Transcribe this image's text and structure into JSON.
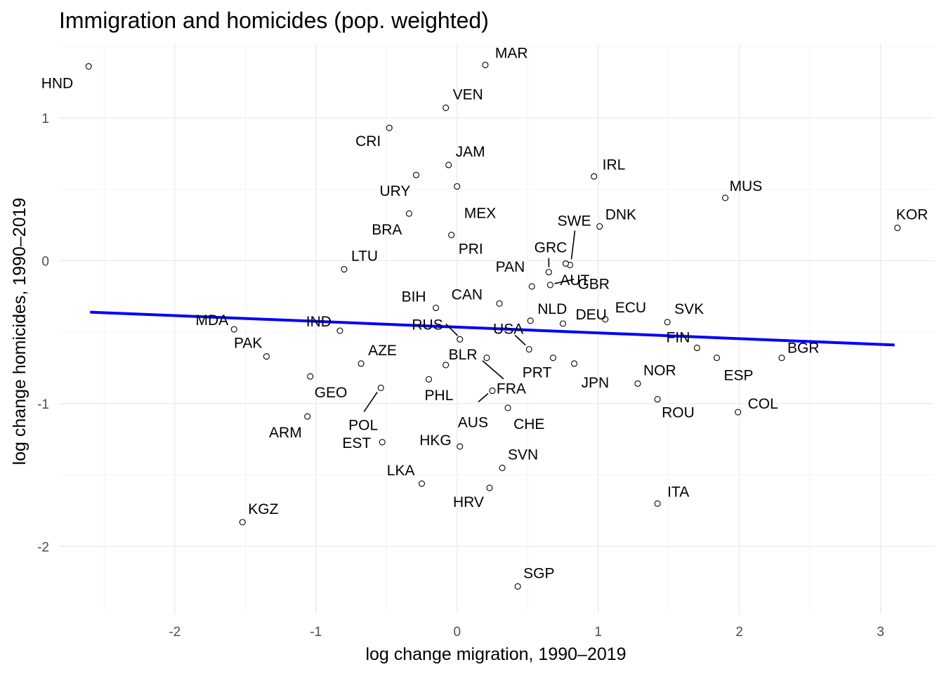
{
  "chart_data": {
    "type": "scatter",
    "title": "Immigration and homicides (pop. weighted)",
    "xlabel": "log change migration, 1990–2019",
    "ylabel": "log change homicides, 1990–2019",
    "xlim": [
      -2.82,
      3.38
    ],
    "ylim": [
      -2.47,
      1.52
    ],
    "x_ticks": [
      -2,
      -1,
      0,
      1,
      2,
      3
    ],
    "x_tick_labels": [
      "-2",
      "-1",
      "0",
      "1",
      "2",
      "3"
    ],
    "y_ticks": [
      -2,
      -1,
      0,
      1
    ],
    "y_tick_labels": [
      "-2",
      "-1",
      "0",
      "1"
    ],
    "grid": true,
    "trend_line": {
      "x": [
        -2.6,
        3.1
      ],
      "y": [
        -0.36,
        -0.59
      ],
      "color": "#0000ff"
    },
    "points": [
      {
        "label": "HND",
        "x": -2.61,
        "y": 1.36
      },
      {
        "label": "MAR",
        "x": 0.2,
        "y": 1.37
      },
      {
        "label": "VEN",
        "x": -0.08,
        "y": 1.07
      },
      {
        "label": "CRI",
        "x": -0.48,
        "y": 0.93
      },
      {
        "label": "JAM",
        "x": -0.06,
        "y": 0.67
      },
      {
        "label": "URY",
        "x": -0.29,
        "y": 0.6
      },
      {
        "label": "MEX",
        "x": 0.0,
        "y": 0.52
      },
      {
        "label": "IRL",
        "x": 0.97,
        "y": 0.59
      },
      {
        "label": "MUS",
        "x": 1.9,
        "y": 0.44
      },
      {
        "label": "KOR",
        "x": 3.12,
        "y": 0.23
      },
      {
        "label": "BRA",
        "x": -0.34,
        "y": 0.33
      },
      {
        "label": "DNK",
        "x": 1.01,
        "y": 0.24
      },
      {
        "label": "SWE",
        "x": 0.8,
        "y": -0.03
      },
      {
        "label": "PRI",
        "x": -0.04,
        "y": 0.18
      },
      {
        "label": "GBR",
        "x": 0.77,
        "y": -0.02
      },
      {
        "label": "GRC",
        "x": 0.65,
        "y": -0.08
      },
      {
        "label": "LTU",
        "x": -0.8,
        "y": -0.06
      },
      {
        "label": "PAN",
        "x": 0.53,
        "y": -0.18
      },
      {
        "label": "AUT",
        "x": 0.66,
        "y": -0.17
      },
      {
        "label": "BIH",
        "x": -0.15,
        "y": -0.33
      },
      {
        "label": "CAN",
        "x": 0.3,
        "y": -0.3
      },
      {
        "label": "NLD",
        "x": 0.52,
        "y": -0.42
      },
      {
        "label": "ECU",
        "x": 1.05,
        "y": -0.41
      },
      {
        "label": "SVK",
        "x": 1.49,
        "y": -0.43
      },
      {
        "label": "MDA",
        "x": -1.58,
        "y": -0.48
      },
      {
        "label": "IND",
        "x": -0.83,
        "y": -0.49
      },
      {
        "label": "RUS",
        "x": 0.02,
        "y": -0.55
      },
      {
        "label": "USA",
        "x": 0.51,
        "y": -0.62
      },
      {
        "label": "DEU",
        "x": 0.75,
        "y": -0.44
      },
      {
        "label": "FIN",
        "x": 1.7,
        "y": -0.61
      },
      {
        "label": "BGR",
        "x": 2.3,
        "y": -0.68
      },
      {
        "label": "PAK",
        "x": -1.35,
        "y": -0.67
      },
      {
        "label": "AZE",
        "x": -0.68,
        "y": -0.72
      },
      {
        "label": "BLR",
        "x": -0.08,
        "y": -0.73
      },
      {
        "label": "PRT",
        "x": 0.68,
        "y": -0.68
      },
      {
        "label": "JPN",
        "x": 0.83,
        "y": -0.72
      },
      {
        "label": "NOR",
        "x": 1.28,
        "y": -0.86
      },
      {
        "label": "ESP",
        "x": 1.84,
        "y": -0.68
      },
      {
        "label": "GEO",
        "x": -1.04,
        "y": -0.81
      },
      {
        "label": "PHL",
        "x": -0.2,
        "y": -0.83
      },
      {
        "label": "FRA",
        "x": 0.21,
        "y": -0.68
      },
      {
        "label": "POL",
        "x": -0.54,
        "y": -0.89
      },
      {
        "label": "AUS",
        "x": 0.25,
        "y": -0.91
      },
      {
        "label": "CHE",
        "x": 0.36,
        "y": -1.03
      },
      {
        "label": "ROU",
        "x": 1.42,
        "y": -0.97
      },
      {
        "label": "COL",
        "x": 1.99,
        "y": -1.06
      },
      {
        "label": "ARM",
        "x": -1.06,
        "y": -1.09
      },
      {
        "label": "EST",
        "x": -0.53,
        "y": -1.27
      },
      {
        "label": "HKG",
        "x": 0.02,
        "y": -1.3
      },
      {
        "label": "SVN",
        "x": 0.32,
        "y": -1.45
      },
      {
        "label": "LKA",
        "x": -0.25,
        "y": -1.56
      },
      {
        "label": "HRV",
        "x": 0.23,
        "y": -1.59
      },
      {
        "label": "ITA",
        "x": 1.42,
        "y": -1.7
      },
      {
        "label": "KGZ",
        "x": -1.52,
        "y": -1.83
      },
      {
        "label": "SGP",
        "x": 0.43,
        "y": -2.28
      }
    ]
  }
}
